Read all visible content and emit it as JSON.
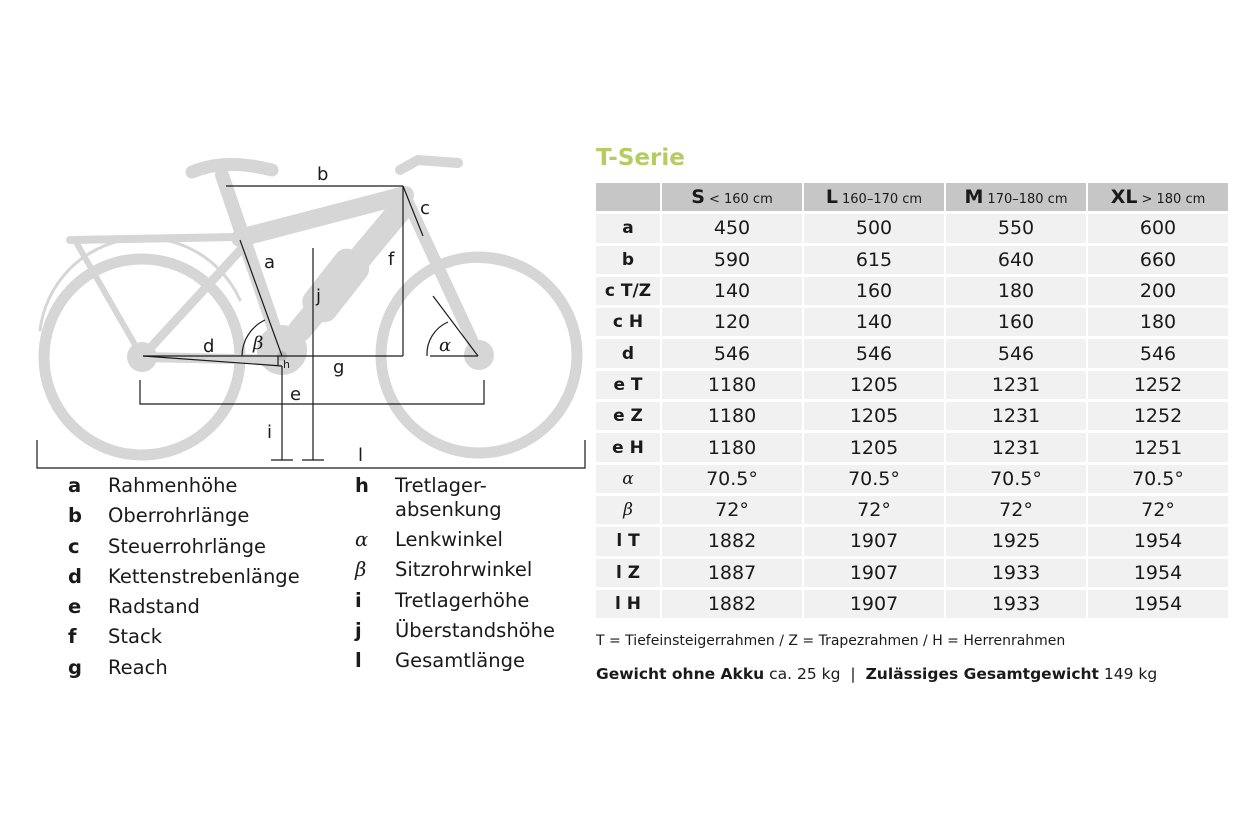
{
  "diagram": {
    "labels": {
      "a": "a",
      "b": "b",
      "c": "c",
      "d": "d",
      "e": "e",
      "f": "f",
      "g": "g",
      "h": "h",
      "i": "i",
      "j": "j",
      "l": "l",
      "alpha": "α",
      "beta": "β"
    }
  },
  "legend": {
    "left": [
      {
        "key": "a",
        "text": "Rahmenhöhe"
      },
      {
        "key": "b",
        "text": "Oberrohrlänge"
      },
      {
        "key": "c",
        "text": "Steuerrohrlänge"
      },
      {
        "key": "d",
        "text": "Kettenstrebenlänge"
      },
      {
        "key": "e",
        "text": "Radstand"
      },
      {
        "key": "f",
        "text": "Stack"
      },
      {
        "key": "g",
        "text": "Reach"
      }
    ],
    "right": [
      {
        "key": "h",
        "text": "Tretlager-",
        "text2": "absenkung"
      },
      {
        "key": "α",
        "text": "Lenkwinkel"
      },
      {
        "key": "β",
        "text": "Sitzrohrwinkel"
      },
      {
        "key": "i",
        "text": "Tretlagerhöhe"
      },
      {
        "key": "j",
        "text": "Überstandshöhe"
      },
      {
        "key": "l",
        "text": "Gesamtlänge"
      }
    ]
  },
  "table": {
    "title": "T-Serie",
    "sizes": [
      {
        "size": "S",
        "range": "< 160 cm"
      },
      {
        "size": "L",
        "range": "160–170 cm"
      },
      {
        "size": "M",
        "range": "170–180 cm"
      },
      {
        "size": "XL",
        "range": "> 180 cm"
      }
    ],
    "rows": [
      {
        "label": "a",
        "values": [
          "450",
          "500",
          "550",
          "600"
        ]
      },
      {
        "label": "b",
        "values": [
          "590",
          "615",
          "640",
          "660"
        ]
      },
      {
        "label": "c T/Z",
        "values": [
          "140",
          "160",
          "180",
          "200"
        ]
      },
      {
        "label": "c H",
        "values": [
          "120",
          "140",
          "160",
          "180"
        ]
      },
      {
        "label": "d",
        "values": [
          "546",
          "546",
          "546",
          "546"
        ]
      },
      {
        "label": "e T",
        "values": [
          "1180",
          "1205",
          "1231",
          "1252"
        ]
      },
      {
        "label": "e Z",
        "values": [
          "1180",
          "1205",
          "1231",
          "1252"
        ]
      },
      {
        "label": "e H",
        "values": [
          "1180",
          "1205",
          "1231",
          "1251"
        ]
      },
      {
        "label": "α",
        "values": [
          "70.5°",
          "70.5°",
          "70.5°",
          "70.5°"
        ]
      },
      {
        "label": "β",
        "values": [
          "72°",
          "72°",
          "72°",
          "72°"
        ]
      },
      {
        "label": "l T",
        "values": [
          "1882",
          "1907",
          "1925",
          "1954"
        ]
      },
      {
        "label": "l Z",
        "values": [
          "1887",
          "1907",
          "1933",
          "1954"
        ]
      },
      {
        "label": "l H",
        "values": [
          "1882",
          "1907",
          "1933",
          "1954"
        ]
      }
    ],
    "abbrev": "T = Tiefeinsteigerrahmen / Z = Trapezrahmen / H = Herrenrahmen",
    "weights": {
      "label1": "Gewicht ohne Akku",
      "value1": "ca. 25 kg",
      "separator": "|",
      "label2": "Zulässiges Gesamtgewicht",
      "value2": "149 kg"
    }
  },
  "colors": {
    "title_green": "#b5cc63",
    "bike_gray": "#d4d4d4",
    "header_gray": "#c6c6c6",
    "cell_gray": "#f1f1f1"
  }
}
